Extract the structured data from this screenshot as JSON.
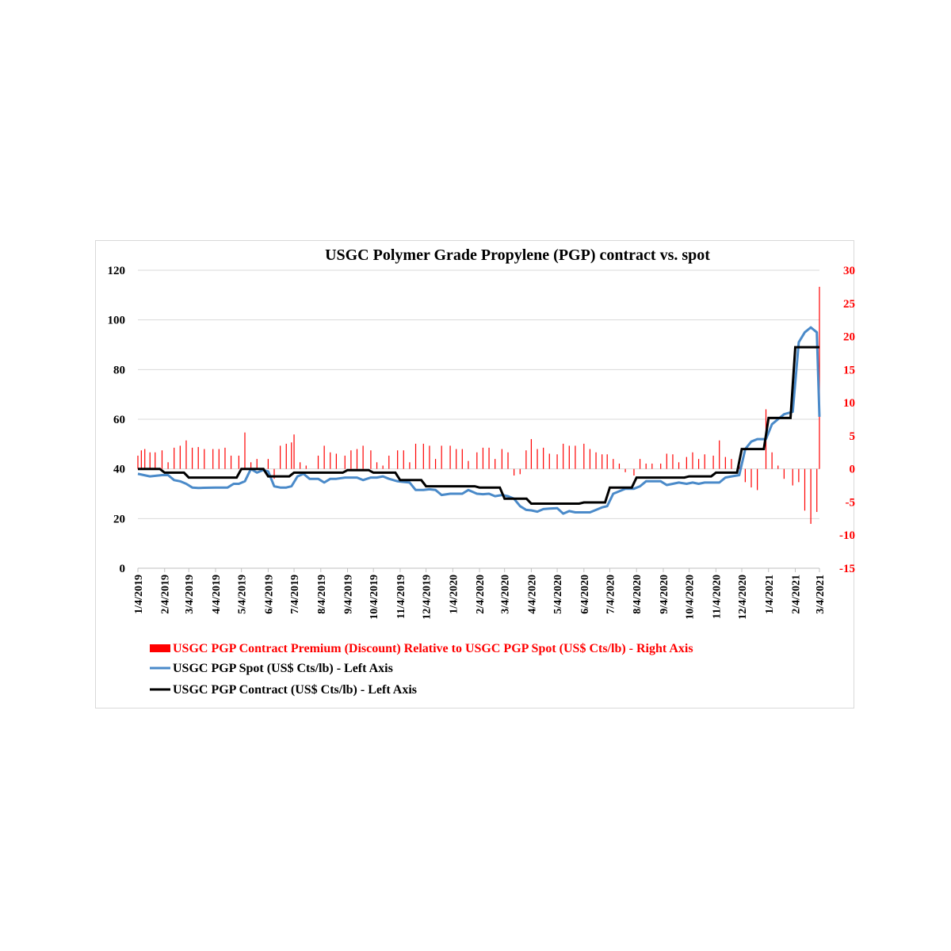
{
  "chart_data": {
    "type": "line",
    "title": "USGC Polymer Grade Propylene (PGP) contract vs. spot",
    "y_left": {
      "ylim": [
        0,
        120
      ],
      "ticks": [
        "0",
        "20",
        "40",
        "60",
        "80",
        "100",
        "120"
      ]
    },
    "y_right": {
      "ylim": [
        -15,
        30
      ],
      "ticks": [
        "-15",
        "-10",
        "-5",
        "0",
        "5",
        "10",
        "15",
        "20",
        "25",
        "30"
      ]
    },
    "x_ticks": [
      "1/4/2019",
      "2/4/2019",
      "3/4/2019",
      "4/4/2019",
      "5/4/2019",
      "6/4/2019",
      "7/4/2019",
      "8/4/2019",
      "9/4/2019",
      "10/4/2019",
      "11/4/2019",
      "12/4/2019",
      "1/4/2020",
      "2/4/2020",
      "3/4/2020",
      "4/4/2020",
      "5/4/2020",
      "6/4/2020",
      "7/4/2020",
      "8/4/2020",
      "9/4/2020",
      "10/4/2020",
      "11/4/2020",
      "12/4/2020",
      "1/4/2021",
      "2/4/2021",
      "3/4/2021"
    ],
    "legend": [
      "USGC PGP Contract Premium (Discount) Relative to USGC PGP Spot (US$ Cts/lb) - Right Axis",
      "USGC PGP Spot (US$ Cts/lb) - Left Axis",
      "USGC PGP Contract (US$ Cts/lb) - Left Axis"
    ],
    "legend_position": "bottom",
    "grid": true,
    "colors": {
      "premium": "#ff0000",
      "spot": "#4a8ac9",
      "contract": "#000000"
    },
    "series": [
      {
        "name": "USGC PGP Spot (US$ Cts/lb) - Left Axis",
        "axis": "left",
        "type": "line",
        "points": [
          [
            "1/4/2019",
            38
          ],
          [
            "1/18/2019",
            37
          ],
          [
            "2/1/2019",
            37.5
          ],
          [
            "2/8/2019",
            37.5
          ],
          [
            "2/15/2019",
            35.5
          ],
          [
            "2/22/2019",
            35
          ],
          [
            "3/1/2019",
            34
          ],
          [
            "3/8/2019",
            32.5
          ],
          [
            "3/15/2019",
            32.3
          ],
          [
            "3/22/2019",
            32.4
          ],
          [
            "4/4/2019",
            32.5
          ],
          [
            "4/18/2019",
            32.5
          ],
          [
            "4/25/2019",
            34
          ],
          [
            "5/1/2019",
            34
          ],
          [
            "5/8/2019",
            35
          ],
          [
            "5/15/2019",
            40
          ],
          [
            "5/22/2019",
            38.5
          ],
          [
            "5/29/2019",
            39.5
          ],
          [
            "6/4/2019",
            39
          ],
          [
            "6/11/2019",
            33
          ],
          [
            "6/18/2019",
            32.5
          ],
          [
            "6/25/2019",
            32.5
          ],
          [
            "7/1/2019",
            33
          ],
          [
            "7/8/2019",
            37
          ],
          [
            "7/15/2019",
            38
          ],
          [
            "7/22/2019",
            36
          ],
          [
            "8/1/2019",
            36
          ],
          [
            "8/8/2019",
            34.5
          ],
          [
            "8/15/2019",
            36
          ],
          [
            "8/22/2019",
            36
          ],
          [
            "9/1/2019",
            36.5
          ],
          [
            "9/15/2019",
            36.5
          ],
          [
            "9/22/2019",
            35.5
          ],
          [
            "10/1/2019",
            36.5
          ],
          [
            "10/8/2019",
            36.5
          ],
          [
            "10/15/2019",
            37
          ],
          [
            "10/22/2019",
            36
          ],
          [
            "11/1/2019",
            35
          ],
          [
            "11/15/2019",
            34.5
          ],
          [
            "11/22/2019",
            31.5
          ],
          [
            "12/1/2019",
            31.5
          ],
          [
            "12/8/2019",
            31.8
          ],
          [
            "12/15/2019",
            31.5
          ],
          [
            "12/22/2019",
            29.5
          ],
          [
            "1/1/2020",
            30
          ],
          [
            "1/15/2020",
            30
          ],
          [
            "1/22/2020",
            31.5
          ],
          [
            "2/1/2020",
            30
          ],
          [
            "2/8/2020",
            29.8
          ],
          [
            "2/15/2020",
            30
          ],
          [
            "2/22/2020",
            29
          ],
          [
            "3/1/2020",
            29.5
          ],
          [
            "3/8/2020",
            29
          ],
          [
            "3/15/2020",
            28
          ],
          [
            "3/22/2020",
            25
          ],
          [
            "3/29/2020",
            23.5
          ],
          [
            "4/4/2020",
            23.3
          ],
          [
            "4/11/2020",
            22.8
          ],
          [
            "4/18/2020",
            23.8
          ],
          [
            "4/25/2020",
            24
          ],
          [
            "5/4/2020",
            24.2
          ],
          [
            "5/11/2020",
            22
          ],
          [
            "5/18/2020",
            23
          ],
          [
            "5/25/2020",
            22.5
          ],
          [
            "6/4/2020",
            22.5
          ],
          [
            "6/11/2020",
            22.5
          ],
          [
            "6/18/2020",
            23.5
          ],
          [
            "6/25/2020",
            24.5
          ],
          [
            "7/1/2020",
            25
          ],
          [
            "7/8/2020",
            30
          ],
          [
            "7/15/2020",
            31
          ],
          [
            "7/22/2020",
            32
          ],
          [
            "8/1/2020",
            32
          ],
          [
            "8/8/2020",
            33
          ],
          [
            "8/15/2020",
            35
          ],
          [
            "8/22/2020",
            35
          ],
          [
            "9/1/2020",
            35
          ],
          [
            "9/8/2020",
            33.5
          ],
          [
            "9/15/2020",
            34
          ],
          [
            "9/22/2020",
            34.5
          ],
          [
            "10/1/2020",
            34
          ],
          [
            "10/8/2020",
            34.5
          ],
          [
            "10/15/2020",
            34
          ],
          [
            "10/22/2020",
            34.5
          ],
          [
            "11/1/2020",
            34.5
          ],
          [
            "11/8/2020",
            34.5
          ],
          [
            "11/15/2020",
            36.5
          ],
          [
            "11/22/2020",
            37
          ],
          [
            "12/1/2020",
            37.5
          ],
          [
            "12/8/2020",
            48
          ],
          [
            "12/15/2020",
            51
          ],
          [
            "12/22/2020",
            52
          ],
          [
            "1/1/2021",
            52
          ],
          [
            "1/8/2021",
            58
          ],
          [
            "1/15/2021",
            60
          ],
          [
            "1/22/2021",
            62
          ],
          [
            "2/1/2021",
            63
          ],
          [
            "2/8/2021",
            91
          ],
          [
            "2/15/2021",
            95
          ],
          [
            "2/22/2021",
            97
          ],
          [
            "3/1/2021",
            95
          ],
          [
            "3/4/2021",
            61
          ]
        ]
      },
      {
        "name": "USGC PGP Contract (US$ Cts/lb) - Left Axis",
        "axis": "left",
        "type": "step",
        "points": [
          [
            "1/4/2019",
            40
          ],
          [
            "2/4/2019",
            38.5
          ],
          [
            "3/4/2019",
            36.5
          ],
          [
            "5/4/2019",
            40
          ],
          [
            "6/4/2019",
            37
          ],
          [
            "7/4/2019",
            38.5
          ],
          [
            "9/4/2019",
            39.5
          ],
          [
            "10/4/2019",
            38.5
          ],
          [
            "11/4/2019",
            35.5
          ],
          [
            "12/4/2019",
            33
          ],
          [
            "2/4/2020",
            32.5
          ],
          [
            "3/4/2020",
            28
          ],
          [
            "4/4/2020",
            26
          ],
          [
            "6/4/2020",
            26.5
          ],
          [
            "7/4/2020",
            32.5
          ],
          [
            "8/4/2020",
            36.5
          ],
          [
            "10/4/2020",
            37
          ],
          [
            "11/4/2020",
            38.5
          ],
          [
            "12/4/2020",
            48
          ],
          [
            "1/4/2021",
            60.5
          ],
          [
            "2/4/2021",
            89
          ],
          [
            "3/4/2021",
            89
          ]
        ]
      },
      {
        "name": "USGC PGP Contract Premium (Discount) Relative to USGC PGP Spot (US$ Cts/lb) - Right Axis",
        "axis": "right",
        "type": "bar",
        "points": [
          [
            "1/4/2019",
            2
          ],
          [
            "1/8/2019",
            2.8
          ],
          [
            "1/12/2019",
            3
          ],
          [
            "1/18/2019",
            2.5
          ],
          [
            "1/24/2019",
            2.5
          ],
          [
            "2/1/2019",
            2.8
          ],
          [
            "2/8/2019",
            1
          ],
          [
            "2/15/2019",
            3.2
          ],
          [
            "2/22/2019",
            3.5
          ],
          [
            "3/1/2019",
            4.3
          ],
          [
            "3/8/2019",
            3.2
          ],
          [
            "3/15/2019",
            3.3
          ],
          [
            "3/22/2019",
            3
          ],
          [
            "4/1/2019",
            3
          ],
          [
            "4/8/2019",
            3
          ],
          [
            "4/15/2019",
            3.2
          ],
          [
            "4/22/2019",
            2
          ],
          [
            "5/1/2019",
            2
          ],
          [
            "5/8/2019",
            5.5
          ],
          [
            "5/15/2019",
            1
          ],
          [
            "5/22/2019",
            1.5
          ],
          [
            "6/4/2019",
            1.5
          ],
          [
            "6/11/2019",
            -1.5
          ],
          [
            "6/18/2019",
            3.5
          ],
          [
            "6/25/2019",
            3.8
          ],
          [
            "7/1/2019",
            4
          ],
          [
            "7/4/2019",
            5.2
          ],
          [
            "7/11/2019",
            1
          ],
          [
            "7/18/2019",
            0.5
          ],
          [
            "8/1/2019",
            2
          ],
          [
            "8/8/2019",
            3.5
          ],
          [
            "8/15/2019",
            2.5
          ],
          [
            "8/22/2019",
            2.3
          ],
          [
            "9/1/2019",
            2
          ],
          [
            "9/8/2019",
            2.8
          ],
          [
            "9/15/2019",
            3
          ],
          [
            "9/22/2019",
            3.5
          ],
          [
            "10/1/2019",
            2.8
          ],
          [
            "10/8/2019",
            1
          ],
          [
            "10/15/2019",
            0.5
          ],
          [
            "10/22/2019",
            2
          ],
          [
            "11/1/2019",
            2.8
          ],
          [
            "11/8/2019",
            2.8
          ],
          [
            "11/15/2019",
            1
          ],
          [
            "11/22/2019",
            3.8
          ],
          [
            "12/1/2019",
            3.8
          ],
          [
            "12/8/2019",
            3.5
          ],
          [
            "12/15/2019",
            1.5
          ],
          [
            "12/22/2019",
            3.5
          ],
          [
            "1/1/2020",
            3.5
          ],
          [
            "1/8/2020",
            3
          ],
          [
            "1/15/2020",
            3
          ],
          [
            "1/22/2020",
            1.2
          ],
          [
            "2/1/2020",
            2.5
          ],
          [
            "2/8/2020",
            3.2
          ],
          [
            "2/15/2020",
            3.2
          ],
          [
            "2/22/2020",
            1.5
          ],
          [
            "3/1/2020",
            3
          ],
          [
            "3/8/2020",
            2.5
          ],
          [
            "3/15/2020",
            -1
          ],
          [
            "3/22/2020",
            -0.8
          ],
          [
            "3/29/2020",
            2.8
          ],
          [
            "4/4/2020",
            4.5
          ],
          [
            "4/11/2020",
            3
          ],
          [
            "4/18/2020",
            3.2
          ],
          [
            "4/25/2020",
            2.3
          ],
          [
            "5/4/2020",
            2.2
          ],
          [
            "5/11/2020",
            3.8
          ],
          [
            "5/18/2020",
            3.5
          ],
          [
            "5/25/2020",
            3.5
          ],
          [
            "6/4/2020",
            3.8
          ],
          [
            "6/11/2020",
            3
          ],
          [
            "6/18/2020",
            2.5
          ],
          [
            "6/25/2020",
            2.2
          ],
          [
            "7/1/2020",
            2.2
          ],
          [
            "7/8/2020",
            1.5
          ],
          [
            "7/15/2020",
            0.8
          ],
          [
            "7/22/2020",
            -0.5
          ],
          [
            "8/1/2020",
            -1
          ],
          [
            "8/8/2020",
            1.5
          ],
          [
            "8/15/2020",
            0.8
          ],
          [
            "8/22/2020",
            0.8
          ],
          [
            "9/1/2020",
            0.8
          ],
          [
            "9/8/2020",
            2.3
          ],
          [
            "9/15/2020",
            2.2
          ],
          [
            "9/22/2020",
            1
          ],
          [
            "10/1/2020",
            1.8
          ],
          [
            "10/8/2020",
            2.5
          ],
          [
            "10/15/2020",
            1.5
          ],
          [
            "10/22/2020",
            2.2
          ],
          [
            "11/1/2020",
            2
          ],
          [
            "11/8/2020",
            4.3
          ],
          [
            "11/15/2020",
            1.8
          ],
          [
            "11/22/2020",
            1.5
          ],
          [
            "12/1/2020",
            1
          ],
          [
            "12/8/2020",
            -2
          ],
          [
            "12/15/2020",
            -2.8
          ],
          [
            "12/22/2020",
            -3.2
          ],
          [
            "1/1/2021",
            9
          ],
          [
            "1/8/2021",
            2.5
          ],
          [
            "1/15/2021",
            0.5
          ],
          [
            "1/22/2021",
            -1.5
          ],
          [
            "2/1/2021",
            -2.5
          ],
          [
            "2/8/2021",
            -2
          ],
          [
            "2/15/2021",
            -6.3
          ],
          [
            "2/22/2021",
            -8.3
          ],
          [
            "3/1/2021",
            -6.5
          ],
          [
            "3/4/2021",
            27.5
          ]
        ]
      }
    ]
  }
}
